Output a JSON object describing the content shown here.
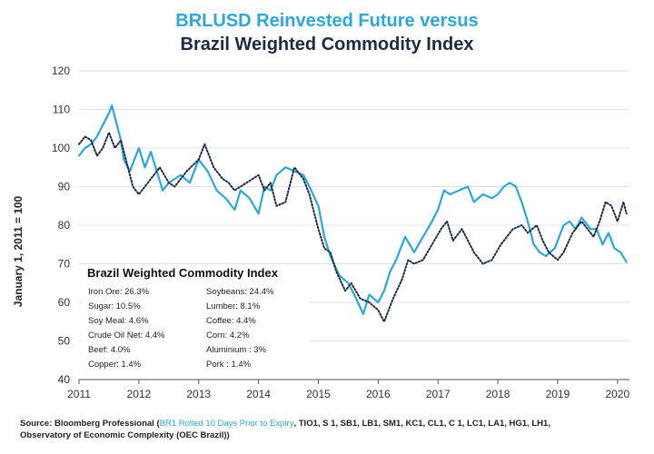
{
  "colors": {
    "primary": "#2aa8dc",
    "secondary": "#1d2b45",
    "grid": "#dde2e8"
  },
  "title_line1": "BRLUSD Reinvested Future versus",
  "title_line2": "Brazil Weighted Commodity Index",
  "chart_data": {
    "type": "line",
    "ylabel": "January 1, 2011 = 100",
    "ylim": [
      40,
      120
    ],
    "yticks": [
      40,
      50,
      60,
      70,
      80,
      90,
      100,
      110,
      120
    ],
    "xlim": [
      2011,
      2020.2
    ],
    "xticks": [
      "2011",
      "2012",
      "2013",
      "2014",
      "2015",
      "2016",
      "2017",
      "2018",
      "2019",
      "2020"
    ],
    "grid": true,
    "series": [
      {
        "name": "BR1 Rolled 10 Days Prior to Expiry",
        "style": "solid",
        "x": [
          2011.0,
          2011.1,
          2011.2,
          2011.3,
          2011.4,
          2011.5,
          2011.55,
          2011.6,
          2011.7,
          2011.75,
          2011.85,
          2012.0,
          2012.1,
          2012.2,
          2012.3,
          2012.4,
          2012.5,
          2012.6,
          2012.7,
          2012.85,
          2013.0,
          2013.15,
          2013.3,
          2013.45,
          2013.6,
          2013.7,
          2013.85,
          2014.0,
          2014.1,
          2014.2,
          2014.3,
          2014.45,
          2014.6,
          2014.75,
          2014.85,
          2015.0,
          2015.1,
          2015.2,
          2015.35,
          2015.5,
          2015.6,
          2015.75,
          2015.85,
          2016.0,
          2016.1,
          2016.2,
          2016.3,
          2016.45,
          2016.6,
          2016.75,
          2016.9,
          2017.0,
          2017.1,
          2017.2,
          2017.35,
          2017.5,
          2017.6,
          2017.75,
          2017.9,
          2018.0,
          2018.1,
          2018.2,
          2018.3,
          2018.4,
          2018.5,
          2018.6,
          2018.7,
          2018.8,
          2018.95,
          2019.1,
          2019.2,
          2019.3,
          2019.4,
          2019.55,
          2019.65,
          2019.75,
          2019.85,
          2019.95,
          2020.05,
          2020.15
        ],
        "values": [
          98,
          100,
          101,
          103,
          106,
          109,
          111,
          108,
          102,
          97,
          94,
          100,
          95,
          99,
          94,
          89,
          91,
          92,
          93,
          91,
          97,
          94,
          89,
          87,
          84,
          89,
          87,
          83,
          90,
          89,
          93,
          95,
          94,
          93,
          90,
          85,
          77,
          72,
          67,
          65,
          62,
          57,
          62,
          60,
          63,
          68,
          71,
          77,
          73,
          77,
          81,
          84,
          89,
          88,
          89,
          90,
          86,
          88,
          87,
          88,
          90,
          91,
          90,
          86,
          81,
          75,
          73,
          72,
          74,
          80,
          81,
          79,
          82,
          79,
          79,
          75,
          78,
          74,
          73,
          70.5
        ]
      },
      {
        "name": "Brazil Weighted Commodity Index",
        "style": "dotted",
        "x": [
          2011.0,
          2011.1,
          2011.2,
          2011.3,
          2011.4,
          2011.5,
          2011.6,
          2011.7,
          2011.8,
          2011.9,
          2012.0,
          2012.15,
          2012.25,
          2012.35,
          2012.5,
          2012.6,
          2012.8,
          2013.0,
          2013.1,
          2013.25,
          2013.4,
          2013.5,
          2013.6,
          2013.8,
          2014.0,
          2014.1,
          2014.2,
          2014.3,
          2014.45,
          2014.6,
          2014.75,
          2014.85,
          2015.0,
          2015.1,
          2015.2,
          2015.3,
          2015.45,
          2015.55,
          2015.7,
          2015.85,
          2016.0,
          2016.1,
          2016.25,
          2016.4,
          2016.5,
          2016.6,
          2016.75,
          2016.9,
          2017.05,
          2017.15,
          2017.25,
          2017.4,
          2017.5,
          2017.6,
          2017.75,
          2017.9,
          2018.05,
          2018.15,
          2018.25,
          2018.4,
          2018.5,
          2018.65,
          2018.75,
          2018.85,
          2019.0,
          2019.1,
          2019.25,
          2019.4,
          2019.5,
          2019.6,
          2019.7,
          2019.8,
          2019.9,
          2020.0,
          2020.1,
          2020.15
        ],
        "values": [
          101,
          103,
          102,
          98,
          100,
          104,
          100,
          102,
          96,
          90,
          88,
          91,
          93,
          95,
          91,
          90,
          94,
          97,
          101,
          95,
          92,
          91,
          89,
          91,
          93,
          89,
          91,
          85,
          86,
          95,
          92,
          88,
          79,
          74,
          73,
          68,
          63,
          65,
          61,
          60,
          58,
          55,
          61,
          66,
          71,
          70,
          71,
          75,
          79,
          81,
          76,
          79,
          76,
          73,
          70,
          71,
          75,
          77,
          79,
          80,
          78,
          80,
          76,
          73,
          71,
          73,
          78,
          81,
          79,
          77,
          81,
          86,
          85,
          81,
          86,
          83
        ]
      }
    ]
  },
  "legend": {
    "title": "Brazil Weighted Commodity Index",
    "items": [
      "Iron Ore: 26.3%",
      "Soybeans: 24.4%",
      "Sugar: 10.5%",
      "Lumber: 8.1%",
      "Soy Meal: 4.6%",
      "Coffee: 4.4%",
      "Crude Oil Net: 4.4%",
      "Corn: 4.2%",
      "Beef: 4.0%",
      "Aluminium : 3%",
      "Copper: 1.4%",
      "Pork : 1.4%"
    ]
  },
  "source": {
    "label": "Source: Bloomberg Professional (",
    "highlight": "BR1 Rolled 10 Days Prior to Expiry",
    "rest": ", TIO1, S 1, SB1, LB1, SM1, KC1, CL1, C 1, LC1, LA1, HG1, LH1,",
    "line2": "Observatory of Economic Complexity (OEC Brazil))"
  }
}
